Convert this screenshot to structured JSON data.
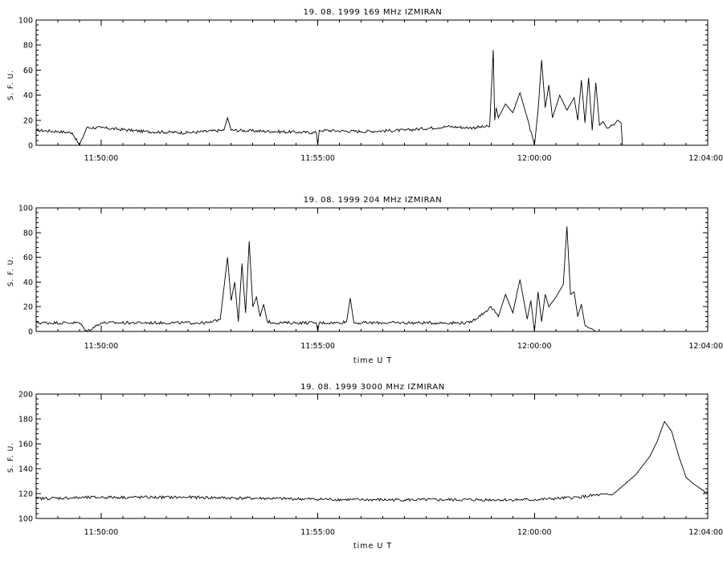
{
  "chart_data": [
    {
      "type": "line",
      "title": "19. 08. 1999    169 MHz    IZMIRAN",
      "ylabel": "S. F. U.",
      "xlabel": "",
      "xlim": [
        "11:48:30",
        "12:04:00"
      ],
      "xticks": [
        "11:50:00",
        "11:55:00",
        "12:00:00",
        "12:04:00"
      ],
      "ylim": [
        0,
        100
      ],
      "yticks": [
        0,
        20,
        40,
        60,
        80,
        100
      ],
      "series": [
        {
          "x": [
            "11:48:30",
            "11:49:00",
            "11:49:20",
            "11:49:30",
            "11:49:40",
            "11:50:00",
            "11:51:00",
            "11:52:00",
            "11:52:50",
            "11:52:55",
            "11:53:00",
            "11:54:00",
            "11:54:58",
            "11:55:00",
            "11:55:02",
            "11:56:00",
            "11:57:00",
            "11:58:00",
            "11:58:30",
            "11:58:58",
            "11:59:03",
            "11:59:05",
            "11:59:07",
            "11:59:10",
            "11:59:20",
            "11:59:30",
            "11:59:40",
            "11:59:50",
            "12:00:00",
            "12:00:05",
            "12:00:10",
            "12:00:15",
            "12:00:20",
            "12:00:25",
            "12:00:35",
            "12:00:45",
            "12:00:55",
            "12:01:00",
            "12:01:05",
            "12:01:10",
            "12:01:15",
            "12:01:20",
            "12:01:25",
            "12:01:30",
            "12:01:35",
            "12:01:40",
            "12:01:50",
            "12:01:55",
            "12:02:00",
            "12:02:02",
            "12:04:00"
          ],
          "y": [
            12,
            11,
            10,
            0,
            14,
            14,
            11,
            10,
            12,
            22,
            12,
            11,
            10,
            0,
            12,
            11,
            12,
            15,
            14,
            15,
            76,
            20,
            30,
            22,
            33,
            26,
            42,
            22,
            0,
            28,
            68,
            30,
            48,
            22,
            40,
            28,
            38,
            20,
            52,
            18,
            54,
            12,
            50,
            16,
            19,
            14,
            16,
            20,
            18,
            0,
            0
          ]
        }
      ]
    },
    {
      "type": "line",
      "title": "19. 08. 1999    204 MHz    IZMIRAN",
      "ylabel": "S. F. U.",
      "xlabel": "time   U T",
      "xlim": [
        "11:48:30",
        "12:04:00"
      ],
      "xticks": [
        "11:50:00",
        "11:55:00",
        "12:00:00",
        "12:04:00"
      ],
      "ylim": [
        0,
        100
      ],
      "yticks": [
        0,
        20,
        40,
        60,
        80,
        100
      ],
      "series": [
        {
          "x": [
            "11:48:30",
            "11:49:30",
            "11:49:40",
            "11:50:00",
            "11:51:00",
            "11:52:30",
            "11:52:45",
            "11:52:55",
            "11:53:00",
            "11:53:05",
            "11:53:10",
            "11:53:15",
            "11:53:20",
            "11:53:25",
            "11:53:30",
            "11:53:35",
            "11:53:40",
            "11:53:45",
            "11:53:50",
            "11:54:00",
            "11:54:30",
            "11:54:58",
            "11:55:00",
            "11:55:02",
            "11:55:30",
            "11:55:40",
            "11:55:45",
            "11:55:50",
            "11:56:30",
            "11:57:30",
            "11:58:30",
            "11:58:50",
            "11:59:00",
            "11:59:10",
            "11:59:20",
            "11:59:30",
            "11:59:40",
            "11:59:50",
            "11:59:55",
            "12:00:00",
            "12:00:05",
            "12:00:10",
            "12:00:15",
            "12:00:20",
            "12:00:30",
            "12:00:40",
            "12:00:45",
            "12:00:50",
            "12:00:55",
            "12:01:00",
            "12:01:05",
            "12:01:10",
            "12:01:15",
            "12:01:20",
            "12:01:25",
            "12:04:00"
          ],
          "y": [
            7,
            7,
            0,
            7,
            7,
            7,
            10,
            60,
            25,
            40,
            8,
            55,
            15,
            73,
            20,
            28,
            12,
            22,
            8,
            7,
            7,
            7,
            0,
            7,
            7,
            8,
            27,
            7,
            7,
            7,
            7,
            15,
            20,
            12,
            30,
            15,
            42,
            10,
            25,
            0,
            32,
            8,
            30,
            20,
            28,
            38,
            85,
            30,
            32,
            12,
            22,
            5,
            3,
            2,
            0,
            0
          ]
        }
      ]
    },
    {
      "type": "line",
      "title": "19. 08. 1999    3000 MHz    IZMIRAN",
      "ylabel": "S. F. U.",
      "xlabel": "time   U T",
      "xlim": [
        "11:48:30",
        "12:04:00"
      ],
      "xticks": [
        "11:50:00",
        "11:55:00",
        "12:00:00",
        "12:04:00"
      ],
      "ylim": [
        100,
        200
      ],
      "yticks": [
        100,
        120,
        140,
        160,
        180,
        200
      ],
      "series": [
        {
          "x": [
            "11:48:30",
            "11:50:00",
            "11:52:00",
            "11:54:00",
            "11:56:00",
            "11:58:00",
            "12:00:00",
            "12:00:30",
            "12:01:00",
            "12:01:30",
            "12:01:48",
            "12:02:00",
            "12:02:20",
            "12:02:40",
            "12:02:50",
            "12:03:00",
            "12:03:10",
            "12:03:20",
            "12:03:30",
            "12:03:40",
            "12:03:50",
            "12:04:00"
          ],
          "y": [
            116,
            117,
            117,
            116,
            115,
            115,
            115,
            116,
            117,
            119,
            119,
            125,
            135,
            150,
            162,
            178,
            170,
            150,
            133,
            128,
            124,
            120
          ]
        }
      ]
    }
  ]
}
